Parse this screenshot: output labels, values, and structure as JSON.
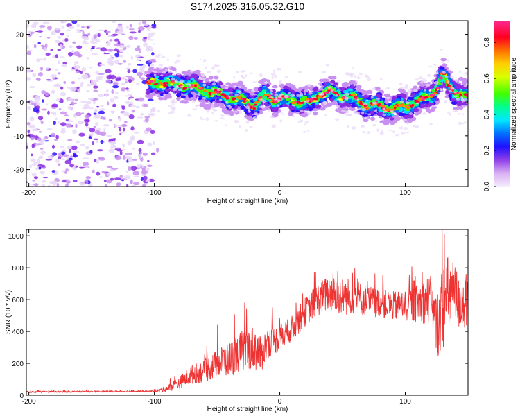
{
  "figure_title": "S174.2025.316.05.32.G10",
  "chart_data": [
    {
      "type": "heatmap",
      "title": "S174.2025.316.05.32.G10",
      "xlabel": "Height of straight line (km)",
      "ylabel": "Frequency (Hz)",
      "xlim": [
        -202,
        150
      ],
      "ylim": [
        -25,
        24
      ],
      "xticks": [
        -200,
        -100,
        0,
        100
      ],
      "xtick_labels": [
        "-200",
        "-100",
        "0",
        "100"
      ],
      "yticks": [
        -20,
        -10,
        0,
        10,
        20
      ],
      "ytick_labels": [
        "-20",
        "-10",
        "0",
        "10",
        "20"
      ],
      "colorbar": {
        "label": "Normalized spectral amplitude",
        "range": [
          0,
          0.92
        ],
        "ticks": [
          0.0,
          0.2,
          0.4,
          0.6,
          0.8
        ],
        "tick_labels": [
          "0.0",
          "0.2",
          "0.4",
          "0.6",
          "0.8"
        ],
        "colormap": [
          "#e8d8f8",
          "#c890f0",
          "#8a2be2",
          "#3010ff",
          "#0070ff",
          "#00e0ff",
          "#00ff90",
          "#40ff00",
          "#ffff00",
          "#ff8000",
          "#ff0030",
          "#ff3090"
        ]
      },
      "ridge": {
        "name": "dominant frequency",
        "x": [
          -105,
          -95,
          -85,
          -75,
          -65,
          -55,
          -45,
          -35,
          -25,
          -20,
          -12,
          -5,
          5,
          15,
          25,
          30,
          40,
          50,
          60,
          65,
          70,
          80,
          90,
          100,
          110,
          120,
          125,
          130,
          135,
          140,
          150
        ],
        "y": [
          5,
          6,
          5,
          5,
          4,
          3,
          2,
          1,
          0,
          -1,
          2,
          1,
          1,
          0,
          0,
          2,
          3,
          2,
          1,
          0,
          -1,
          -1,
          -2,
          -1,
          0,
          2,
          4,
          8,
          5,
          3,
          1
        ]
      },
      "noise_region": {
        "x_range": [
          -202,
          -100
        ],
        "y_range": [
          -25,
          24
        ]
      }
    },
    {
      "type": "line",
      "xlabel": "Height of straight line (km)",
      "ylabel": "SNR (10 * v/v)",
      "xlim": [
        -202,
        150
      ],
      "ylim": [
        0,
        1040
      ],
      "xticks": [
        -200,
        -100,
        0,
        100
      ],
      "xtick_labels": [
        "-200",
        "-100",
        "0",
        "100"
      ],
      "yticks": [
        0,
        200,
        400,
        600,
        800,
        1000
      ],
      "ytick_labels": [
        "0",
        "200",
        "400",
        "600",
        "800",
        "1000"
      ],
      "series": [
        {
          "name": "SNR",
          "color": "#ee3333",
          "envelope_x": [
            -202,
            -100,
            -90,
            -80,
            -70,
            -60,
            -50,
            -40,
            -30,
            -20,
            -15,
            -10,
            0,
            10,
            20,
            30,
            40,
            50,
            60,
            70,
            80,
            90,
            100,
            110,
            120,
            125,
            130,
            135,
            140,
            145,
            150
          ],
          "envelope_y": [
            20,
            25,
            40,
            80,
            130,
            150,
            200,
            230,
            280,
            300,
            250,
            330,
            360,
            420,
            520,
            600,
            640,
            620,
            620,
            590,
            580,
            560,
            560,
            580,
            600,
            430,
            560,
            640,
            620,
            580,
            550
          ],
          "amplitude": [
            5,
            5,
            20,
            40,
            60,
            70,
            90,
            110,
            130,
            140,
            110,
            100,
            80,
            80,
            90,
            100,
            120,
            120,
            110,
            100,
            90,
            90,
            100,
            120,
            160,
            200,
            280,
            250,
            200,
            180,
            160
          ]
        }
      ]
    }
  ]
}
